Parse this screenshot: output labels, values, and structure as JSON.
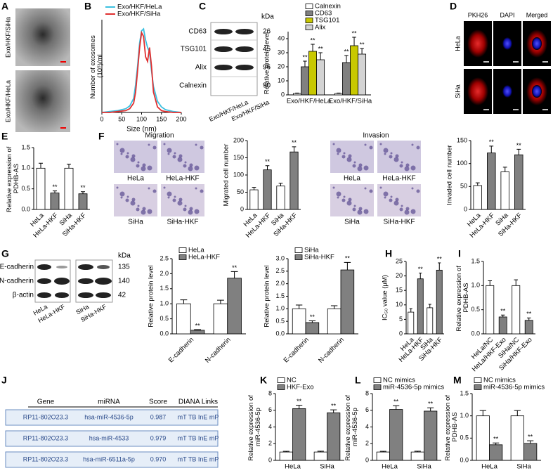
{
  "panel_labels": [
    "A",
    "B",
    "C",
    "D",
    "E",
    "F",
    "G",
    "H",
    "I",
    "J",
    "K",
    "L",
    "M"
  ],
  "panel_A": {
    "labels": [
      "Exo/HKF/SiHa",
      "Exo/HKF/HeLa"
    ]
  },
  "blot_C": {
    "unit": "kDa",
    "rows": [
      {
        "name": "CD63",
        "kda": 26
      },
      {
        "name": "TSG101",
        "kda": 45
      },
      {
        "name": "Alix",
        "kda": 96
      },
      {
        "name": "Calnexin",
        "kda": 90
      }
    ],
    "lanes": [
      "Exo/HKF/HeLa",
      "Exo/HKF/SiHa"
    ]
  },
  "panel_D": {
    "columns": [
      "PKH26",
      "DAPI",
      "Merged"
    ],
    "rows": [
      "HeLa",
      "SiHa"
    ]
  },
  "panel_F": {
    "migration": {
      "title": "Migration",
      "images": [
        "HeLa",
        "HeLa-HKF",
        "SiHa",
        "SiHa-HKF"
      ]
    },
    "invasion": {
      "title": "Invasion",
      "images": [
        "HeLa",
        "HeLa-HKF",
        "SiHa",
        "SiHa-HKF"
      ]
    }
  },
  "blot_G": {
    "unit": "kDa",
    "rows": [
      {
        "name": "E-cadherin",
        "kda": 135
      },
      {
        "name": "N-cadherin",
        "kda": 140
      },
      {
        "name": "β-actin",
        "kda": 42
      }
    ],
    "lanes": [
      "HeLa",
      "HeLa-HKF",
      "SiHa",
      "SiHa-HKF"
    ]
  },
  "table_J": {
    "columns": [
      "Gene",
      "miRNA",
      "Score",
      "DIANA Links"
    ],
    "rows": [
      [
        "RP11-802O23.3",
        "hsa-miR-4536-5p",
        "0.987",
        "mT TB InE mP"
      ],
      [
        "RP11-802O23.3",
        "hsa-miR-4533",
        "0.979",
        "mT TB InE mP"
      ],
      [
        "RP11-802O23.3",
        "hsa-miR-6511a-5p",
        "0.970",
        "mT TB InE mP"
      ]
    ]
  },
  "chart_data": [
    {
      "type": "line",
      "xlabel": "Size (nm)",
      "ylabel": "Number of exosomes (10⁵)/ml",
      "x": [
        0,
        20,
        40,
        60,
        70,
        80,
        85,
        90,
        95,
        100,
        105,
        110,
        115,
        120,
        125,
        130,
        140,
        150,
        160,
        180,
        200
      ],
      "xlim": [
        0,
        200
      ],
      "xticks": [
        0,
        50,
        100,
        150,
        200
      ],
      "ylim": [
        0,
        1
      ],
      "series": [
        {
          "name": "Exo/HKF/HeLa",
          "color": "#3cc0e0",
          "values": [
            0,
            0.01,
            0.02,
            0.04,
            0.07,
            0.15,
            0.3,
            0.5,
            0.75,
            0.88,
            0.9,
            0.78,
            0.7,
            0.65,
            0.45,
            0.28,
            0.12,
            0.06,
            0.03,
            0.01,
            0
          ]
        },
        {
          "name": "Exo/HKF/SiHa",
          "color": "#e03030",
          "values": [
            0,
            0,
            0.01,
            0.02,
            0.04,
            0.1,
            0.22,
            0.45,
            0.7,
            0.86,
            0.82,
            0.6,
            0.55,
            0.7,
            0.5,
            0.22,
            0.06,
            0.02,
            0.01,
            0,
            0
          ]
        }
      ]
    },
    {
      "type": "bar",
      "ylabel": "Relative protein level",
      "categories": [
        "Exo/HKF/HeLa",
        "Exo/HKF/SiHa"
      ],
      "ylim": [
        0,
        45
      ],
      "yticks": [
        0,
        10,
        20,
        30,
        40
      ],
      "series": [
        {
          "name": "Calnexin",
          "color": "#ffffff",
          "values": [
            1,
            1
          ],
          "errors": [
            0.3,
            0.3
          ]
        },
        {
          "name": "CD63",
          "color": "#808080",
          "values": [
            20,
            23
          ],
          "errors": [
            4,
            5
          ],
          "significance": [
            "**",
            "**"
          ]
        },
        {
          "name": "TSG101",
          "color": "#c8c800",
          "values": [
            31,
            35
          ],
          "errors": [
            5,
            6
          ],
          "significance": [
            "**",
            "**"
          ]
        },
        {
          "name": "Alix",
          "color": "#d3d3d3",
          "values": [
            25,
            29
          ],
          "errors": [
            5,
            4
          ],
          "significance": [
            "**",
            "**"
          ]
        }
      ]
    },
    {
      "type": "bar",
      "ylabel": "Relative expression of PDHB-AS",
      "categories": [
        "HeLa",
        "HeLa-HKF",
        "SiHa",
        "SiHa-HKF"
      ],
      "values": [
        1.0,
        0.4,
        1.0,
        0.38
      ],
      "errors": [
        0.12,
        0.05,
        0.1,
        0.05
      ],
      "significance": [
        null,
        "**",
        null,
        "**"
      ],
      "colors": [
        "#ffffff",
        "#808080",
        "#ffffff",
        "#808080"
      ],
      "ylim": [
        0,
        1.5
      ],
      "yticks": [
        {
          "value": 0,
          "label": "0.0"
        },
        0.5,
        {
          "value": 1,
          "label": "1.0"
        },
        1.5
      ]
    },
    {
      "type": "bar",
      "ylabel": "Migrated cell number",
      "categories": [
        "HeLa",
        "HeLa-HKF",
        "SiHa",
        "SiHa-HKF"
      ],
      "values": [
        57,
        115,
        68,
        167
      ],
      "errors": [
        7,
        12,
        8,
        15
      ],
      "significance": [
        null,
        "**",
        null,
        "**"
      ],
      "colors": [
        "#ffffff",
        "#808080",
        "#ffffff",
        "#808080"
      ],
      "ylim": [
        0,
        200
      ],
      "yticks": [
        0,
        50,
        100,
        150,
        200
      ]
    },
    {
      "type": "bar",
      "ylabel": "Invaded cell number",
      "categories": [
        "HeLa",
        "HeLa-HKF",
        "SiHa",
        "SiHa-HKF"
      ],
      "values": [
        52,
        123,
        82,
        119
      ],
      "errors": [
        6,
        15,
        10,
        12
      ],
      "significance": [
        null,
        "**",
        null,
        "**"
      ],
      "colors": [
        "#ffffff",
        "#808080",
        "#ffffff",
        "#808080"
      ],
      "ylim": [
        0,
        150
      ],
      "yticks": [
        0,
        50,
        100,
        150
      ]
    },
    {
      "type": "bar",
      "ylabel": "Relative protein level",
      "categories": [
        "E-cadherin",
        "N-cadherin"
      ],
      "ylim": [
        0,
        2.5
      ],
      "yticks": [
        {
          "value": 0,
          "label": "0.0"
        },
        0.5,
        {
          "value": 1,
          "label": "1.0"
        },
        1.5,
        {
          "value": 2,
          "label": "2.0"
        },
        2.5
      ],
      "series": [
        {
          "name": "HeLa",
          "color": "#ffffff",
          "values": [
            1.0,
            1.0
          ],
          "errors": [
            0.13,
            0.12
          ]
        },
        {
          "name": "HeLa-HKF",
          "color": "#808080",
          "values": [
            0.12,
            1.85
          ],
          "errors": [
            0.02,
            0.22
          ],
          "significance": [
            "**",
            "**"
          ]
        }
      ]
    },
    {
      "type": "bar",
      "ylabel": "Relative protein level",
      "categories": [
        "E-cadherin",
        "N-cadherin"
      ],
      "ylim": [
        0,
        3
      ],
      "yticks": [
        {
          "value": 0,
          "label": "0.0"
        },
        0.5,
        {
          "value": 1,
          "label": "1.0"
        },
        1.5,
        {
          "value": 2,
          "label": "2.0"
        },
        2.5,
        {
          "value": 3,
          "label": "3.0"
        }
      ],
      "series": [
        {
          "name": "SiHa",
          "color": "#ffffff",
          "values": [
            1.0,
            1.0
          ],
          "errors": [
            0.15,
            0.12
          ]
        },
        {
          "name": "SiHa-HKF",
          "color": "#808080",
          "values": [
            0.45,
            2.55
          ],
          "errors": [
            0.07,
            0.3
          ],
          "significance": [
            "**",
            "**"
          ]
        }
      ]
    },
    {
      "type": "bar",
      "ylabel": "IC₅₀ value (μM)",
      "categories": [
        "HeLa",
        "HeLa-HKF",
        "SiHa",
        "SiHa-HKF"
      ],
      "values": [
        7.5,
        19,
        9,
        22
      ],
      "errors": [
        1.2,
        2,
        1.2,
        2.5
      ],
      "significance": [
        null,
        "**",
        null,
        "**"
      ],
      "colors": [
        "#ffffff",
        "#808080",
        "#ffffff",
        "#808080"
      ],
      "ylim": [
        0,
        25
      ],
      "yticks": [
        0,
        5,
        10,
        15,
        20,
        25
      ]
    },
    {
      "type": "bar",
      "ylabel": "Relative expression of PDHB-AS",
      "categories": [
        "HeLa/NC",
        "HeLa/HKF-Exo",
        "SiHa/NC",
        "SiHa/HKF-Exo"
      ],
      "values": [
        1.0,
        0.35,
        1.0,
        0.28
      ],
      "errors": [
        0.1,
        0.04,
        0.12,
        0.05
      ],
      "significance": [
        null,
        "**",
        null,
        "**"
      ],
      "colors": [
        "#ffffff",
        "#808080",
        "#ffffff",
        "#808080"
      ],
      "ylim": [
        0,
        1.5
      ],
      "yticks": [
        {
          "value": 0,
          "label": "0.0"
        },
        0.5,
        {
          "value": 1,
          "label": "1.0"
        },
        1.5
      ]
    },
    {
      "type": "bar",
      "ylabel": "Relative expression of miR-4536-5p",
      "categories": [
        "HeLa",
        "SiHa"
      ],
      "ylim": [
        0,
        8
      ],
      "yticks": [
        0,
        2,
        4,
        6,
        8
      ],
      "series": [
        {
          "name": "NC",
          "color": "#ffffff",
          "values": [
            1,
            1
          ],
          "errors": [
            0.08,
            0.1
          ]
        },
        {
          "name": "HKF-Exo",
          "color": "#808080",
          "values": [
            6.2,
            5.7
          ],
          "errors": [
            0.4,
            0.35
          ],
          "significance": [
            "**",
            "**"
          ]
        }
      ]
    },
    {
      "type": "bar",
      "ylabel": "Relative expression of miR-4536-5p",
      "categories": [
        "HeLa",
        "SiHa"
      ],
      "ylim": [
        0,
        8
      ],
      "yticks": [
        0,
        2,
        4,
        6,
        8
      ],
      "series": [
        {
          "name": "NC mimics",
          "color": "#ffffff",
          "values": [
            1,
            1
          ],
          "errors": [
            0.08,
            0.1
          ]
        },
        {
          "name": "miR-4536-5p mimics",
          "color": "#808080",
          "values": [
            6.1,
            5.9
          ],
          "errors": [
            0.45,
            0.4
          ],
          "significance": [
            "**",
            "**"
          ]
        }
      ]
    },
    {
      "type": "bar",
      "ylabel": "Relative expression of PDHB-AS",
      "categories": [
        "HeLa",
        "SiHa"
      ],
      "ylim": [
        0,
        1.5
      ],
      "yticks": [
        {
          "value": 0,
          "label": "0.0"
        },
        0.5,
        {
          "value": 1,
          "label": "1.0"
        },
        1.5
      ],
      "series": [
        {
          "name": "NC mimics",
          "color": "#ffffff",
          "values": [
            1.0,
            1.0
          ],
          "errors": [
            0.12,
            0.12
          ]
        },
        {
          "name": "miR-4536-5p mimics",
          "color": "#808080",
          "values": [
            0.35,
            0.38
          ],
          "errors": [
            0.04,
            0.06
          ],
          "significance": [
            "**",
            "**"
          ]
        }
      ]
    }
  ]
}
